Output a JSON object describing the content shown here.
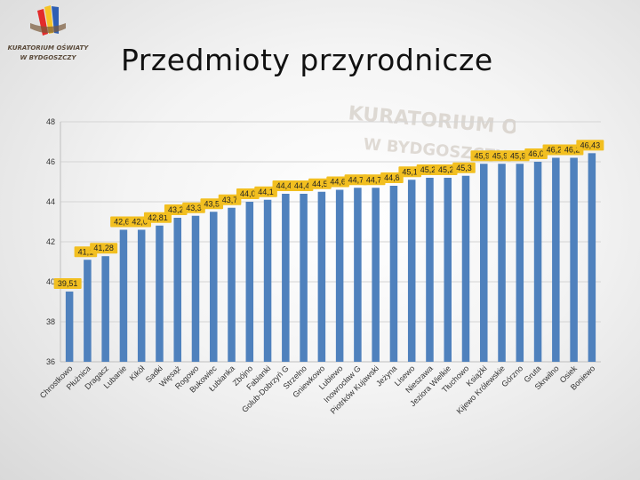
{
  "slide": {
    "title": "Przedmioty przyrodnicze",
    "logo_line1": "KURATORIUM OŚWIATY",
    "logo_line2": "W BYDGOSZCZY"
  },
  "colors": {
    "bar": "#4f81bd",
    "label_bg": "#f2bf20",
    "grid": "#d4d4d4",
    "axis_text": "#333333"
  },
  "chart_data": {
    "type": "bar",
    "title": "",
    "xlabel": "",
    "ylabel": "",
    "ylim": [
      36,
      48
    ],
    "yticks": [
      36,
      38,
      40,
      42,
      44,
      46,
      48
    ],
    "grid": true,
    "categories": [
      "Chrostkowo",
      "Płużnica",
      "Dragacz",
      "Lubanie",
      "Kikół",
      "Sadki",
      "Więsąż",
      "Rogowo",
      "Bukowiec",
      "Łubianka",
      "Zbójno",
      "Fabianki",
      "Golub-Dobrzyń G",
      "Strzelno",
      "Gniewkowo",
      "Lubiewo",
      "Inowrocław G",
      "Piotrków Kujawski",
      "Jeżyna",
      "Lisewo",
      "Nieszawa",
      "Jeziora Wielkie",
      "Tłuchowo",
      "Książki",
      "Kijewo Królewskie",
      "Górzno",
      "Gruta",
      "Skrwilno",
      "Osiek",
      "Boniewo"
    ],
    "values": [
      39.51,
      41.1,
      41.28,
      42.6,
      42.6,
      42.81,
      43.2,
      43.3,
      43.5,
      43.7,
      44.0,
      44.1,
      44.4,
      44.4,
      44.5,
      44.6,
      44.7,
      44.7,
      44.8,
      45.1,
      45.2,
      45.2,
      45.3,
      45.9,
      45.9,
      45.9,
      46.0,
      46.2,
      46.2,
      46.43
    ],
    "data_labels": [
      "39,51",
      "41,1",
      "41,28",
      "42,6",
      "42,6",
      "42,81",
      "43,2",
      "43,3",
      "43,5",
      "43,7",
      "44,0",
      "44,1",
      "44,4",
      "44,4",
      "44,5",
      "44,6",
      "44,7",
      "44,7",
      "44,8",
      "45,1",
      "45,2",
      "45,2",
      "45,3",
      "45,9",
      "45,9",
      "45,9",
      "46,0",
      "46,2",
      "46,2",
      "46,43"
    ]
  }
}
